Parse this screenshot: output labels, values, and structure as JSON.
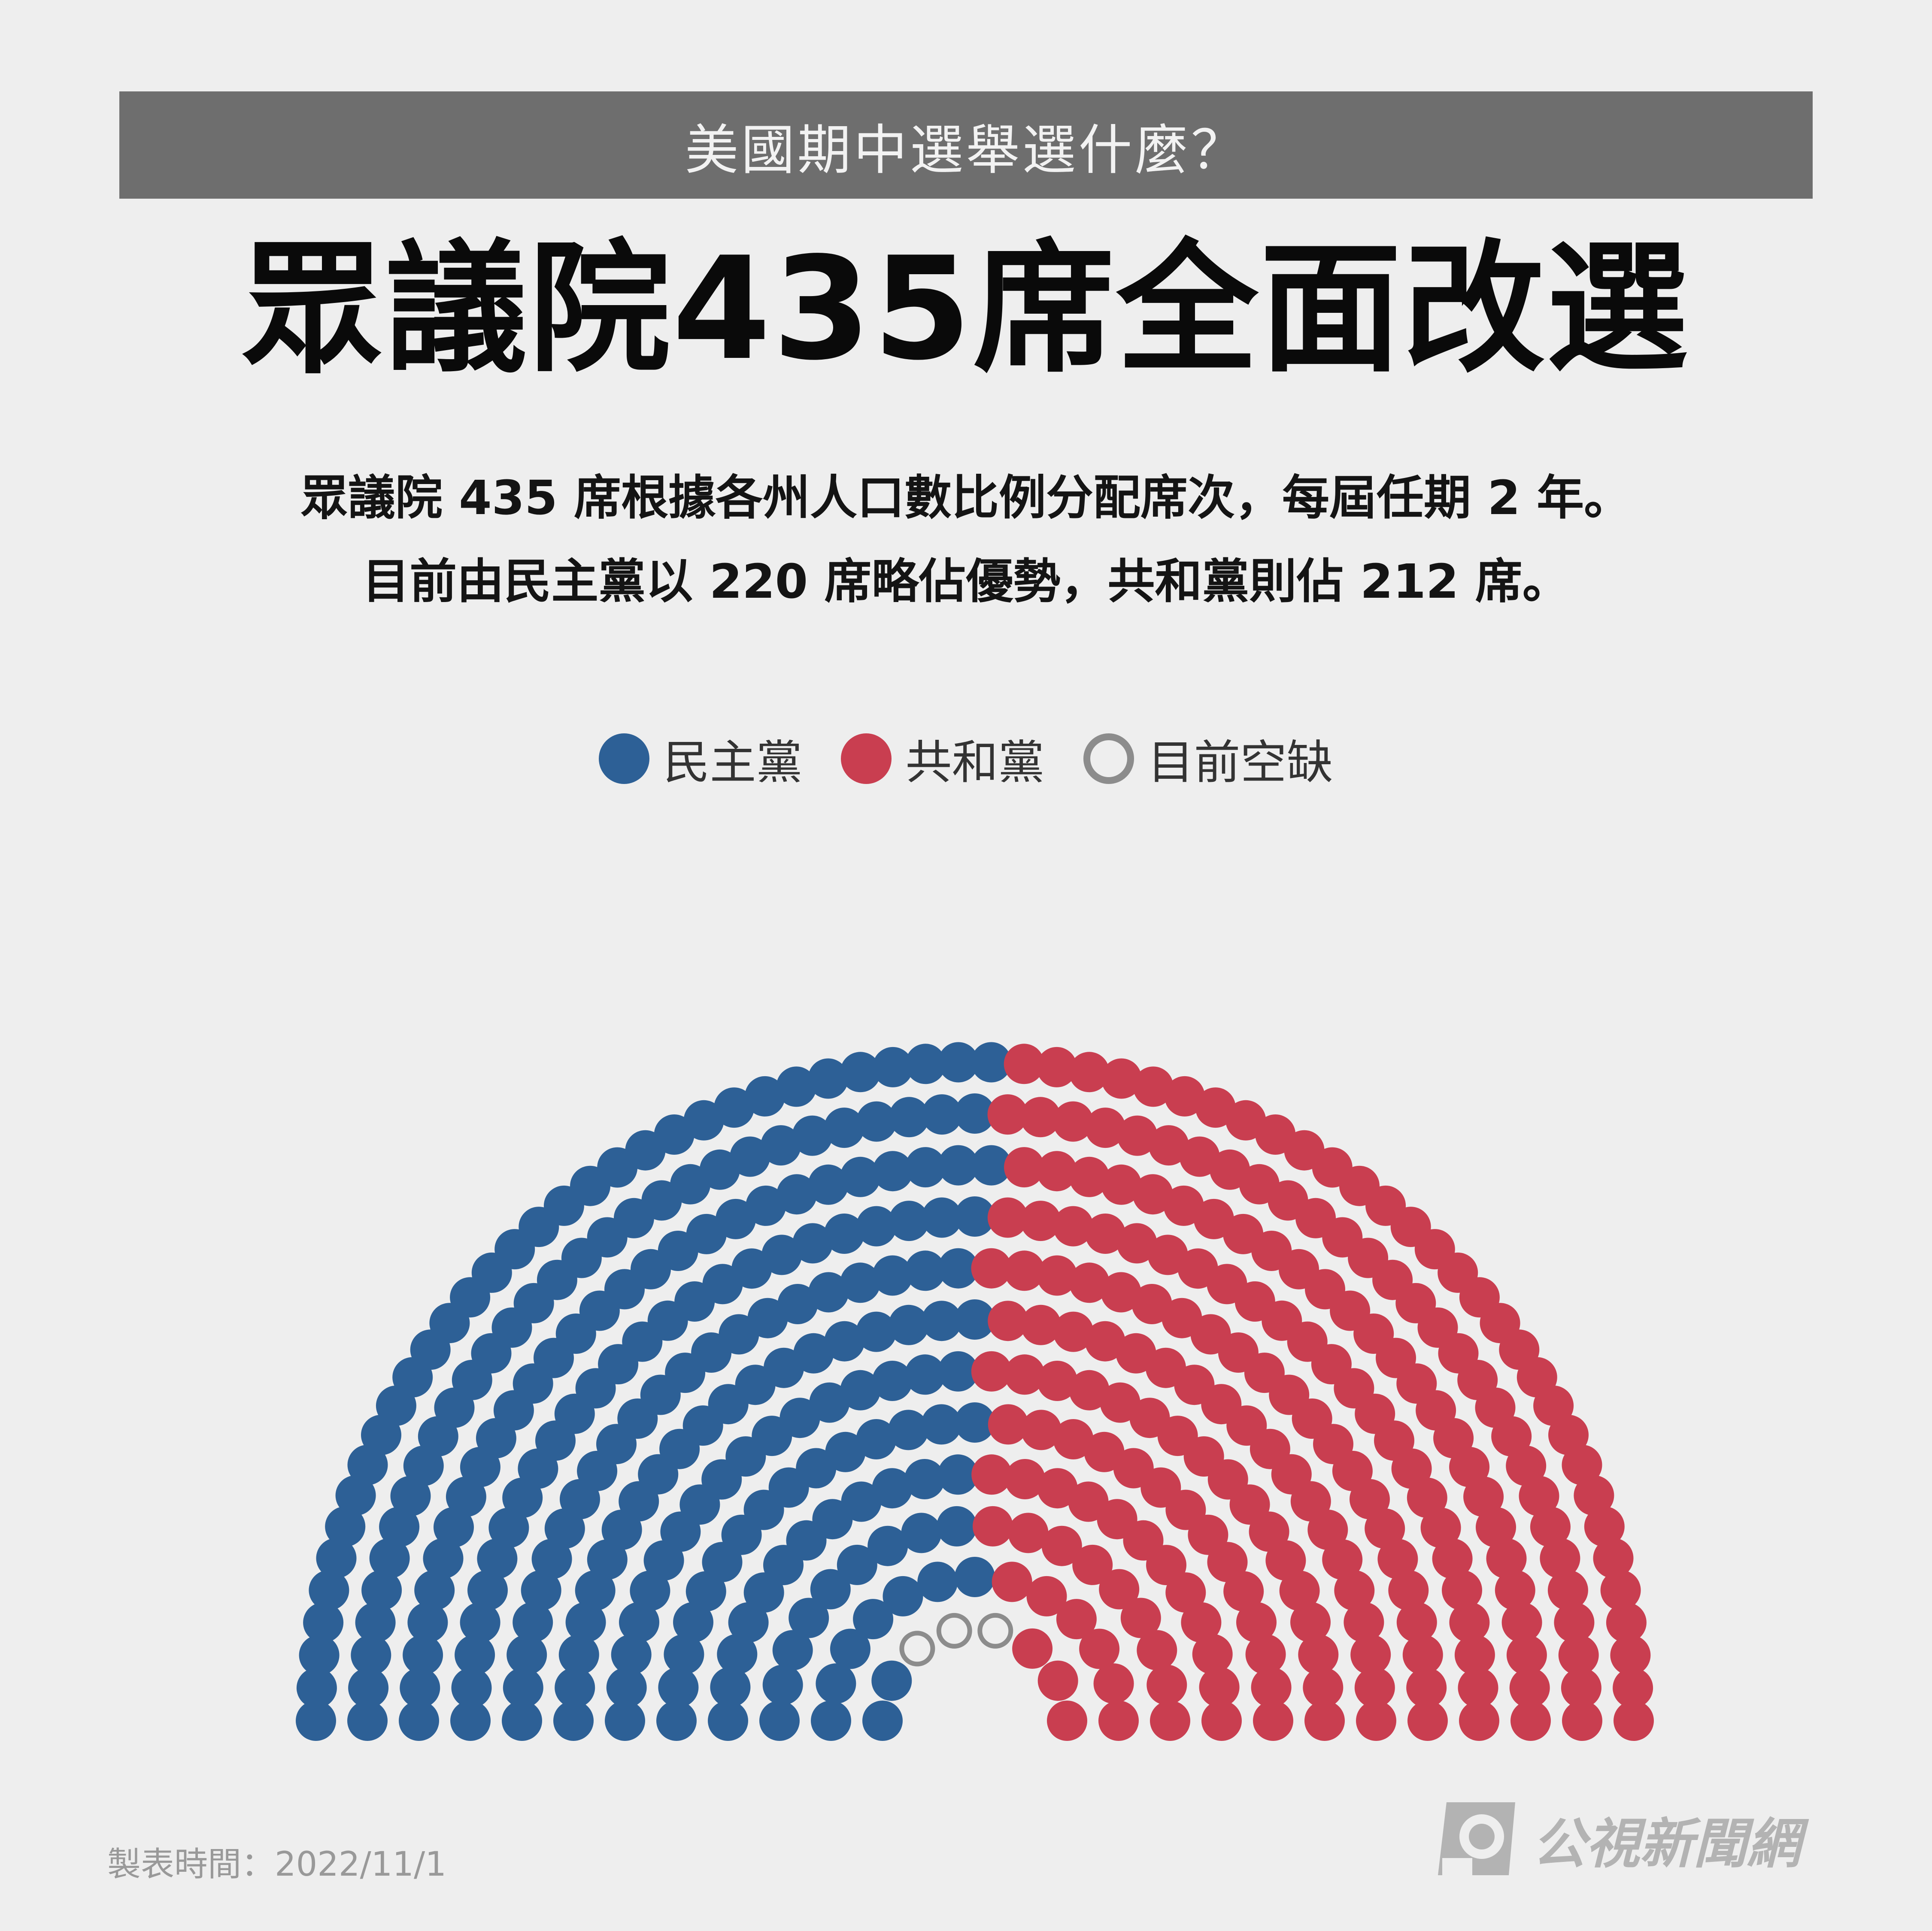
{
  "banner": {
    "text": "美國期中選舉選什麼？"
  },
  "title": "眾議院435席全面改選",
  "description": {
    "line1": "眾議院 435 席根據各州人口數比例分配席次，每屆任期 2 年。",
    "line2": "目前由民主黨以 220 席略佔優勢，共和黨則佔 212 席。"
  },
  "footer": {
    "date_label": "製表時間：2022/11/1",
    "logo_text": "公視新聞網"
  },
  "chart_data": {
    "type": "parliament-hemicycle",
    "total_seats": 435,
    "legend_placement": "top-center",
    "series": [
      {
        "name": "民主黨",
        "value": 220,
        "color": "#2d6096"
      },
      {
        "name": "共和黨",
        "value": 212,
        "color": "#c93e50"
      },
      {
        "name": "目前空缺",
        "value": 3,
        "color": "#8c8c8c",
        "style": "outline"
      }
    ]
  }
}
